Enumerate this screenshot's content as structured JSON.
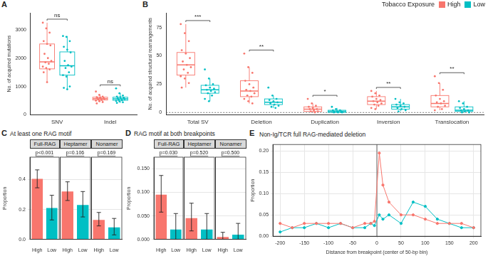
{
  "chart_data": [
    {
      "panel": "A",
      "type": "box",
      "ylabel": "No. of acquired mutations",
      "categories": [
        "SNV",
        "Indel"
      ],
      "ylim": [
        0,
        3600
      ],
      "yticks": [
        0,
        1000,
        2000,
        3000
      ],
      "grid": false,
      "significance": [
        "ns",
        "ns"
      ],
      "series": [
        {
          "name": "High",
          "color": "#F8766D",
          "boxes": [
            [
              1150,
              1620,
              1870,
              2500,
              3250
            ],
            [
              450,
              520,
              570,
              620,
              700
            ]
          ],
          "points": [
            [
              3250,
              3050,
              2900,
              2600,
              2500,
              2450,
              2150,
              2000,
              1900,
              1850,
              1800,
              1700,
              1650,
              1600,
              1500,
              1150
            ],
            [
              820,
              700,
              640,
              620,
              600,
              590,
              580,
              570,
              560,
              540,
              520,
              500,
              480,
              450,
              400
            ]
          ]
        },
        {
          "name": "Low",
          "color": "#00BFC4",
          "boxes": [
            [
              900,
              1400,
              1730,
              2220,
              2780
            ],
            [
              420,
              510,
              560,
              620,
              760
            ]
          ],
          "points": [
            [
              2780,
              2750,
              2600,
              2400,
              2300,
              2200,
              1900,
              1750,
              1700,
              1650,
              1500,
              1400,
              1350,
              1000,
              950,
              900
            ],
            [
              930,
              760,
              680,
              640,
              620,
              600,
              580,
              560,
              550,
              530,
              510,
              490,
              470,
              440,
              420
            ]
          ]
        }
      ]
    },
    {
      "panel": "B",
      "type": "box",
      "ylabel": "No. of acquired structural rearrangements",
      "categories": [
        "Total SV",
        "Deletion",
        "Duplication",
        "Inversion",
        "Translocation"
      ],
      "ylim": [
        -2,
        88
      ],
      "yticks": [
        0,
        25,
        50,
        75
      ],
      "grid": false,
      "hline": 0,
      "significance": [
        "***",
        "**",
        "*",
        "**",
        "**"
      ],
      "legend": "top-right",
      "legend_title": "Tobacco Exposure",
      "series": [
        {
          "name": "High",
          "color": "#F8766D",
          "boxes": [
            [
              22,
              33,
              42,
              53,
              78
            ],
            [
              8,
              14,
              19,
              28,
              40
            ],
            [
              0,
              1,
              3,
              5,
              8
            ],
            [
              3,
              7,
              10,
              14,
              19
            ],
            [
              2,
              5,
              8,
              15,
              26
            ]
          ],
          "points": [
            [
              78,
              70,
              63,
              55,
              52,
              48,
              45,
              42,
              40,
              38,
              35,
              32,
              30,
              26,
              22
            ],
            [
              52,
              40,
              35,
              28,
              25,
              22,
              20,
              19,
              17,
              15,
              14,
              12,
              10,
              8
            ],
            [
              12,
              8,
              6,
              5,
              4,
              3,
              3,
              2,
              1,
              1,
              0
            ],
            [
              19,
              17,
              15,
              14,
              12,
              11,
              10,
              9,
              8,
              7,
              6,
              4,
              3
            ],
            [
              32,
              26,
              20,
              15,
              12,
              10,
              9,
              8,
              6,
              5,
              3,
              2
            ]
          ]
        },
        {
          "name": "Low",
          "color": "#00BFC4",
          "boxes": [
            [
              10,
              17,
              20,
              24,
              30
            ],
            [
              4,
              7,
              9,
              12,
              15
            ],
            [
              0,
              0,
              1,
              2,
              4
            ],
            [
              1,
              3,
              5,
              7,
              12
            ],
            [
              0,
              1,
              2,
              5,
              10
            ]
          ],
          "points": [
            [
              38,
              30,
              25,
              24,
              22,
              21,
              20,
              19,
              18,
              17,
              15,
              12,
              10
            ],
            [
              22,
              15,
              12,
              11,
              10,
              9,
              8,
              7,
              6,
              5,
              4
            ],
            [
              5,
              3,
              2,
              2,
              1,
              1,
              0,
              0,
              0
            ],
            [
              12,
              9,
              8,
              7,
              6,
              5,
              4,
              3,
              2,
              1
            ],
            [
              10,
              8,
              5,
              4,
              3,
              2,
              2,
              1,
              0,
              0
            ]
          ]
        }
      ]
    },
    {
      "panel": "C",
      "type": "bar",
      "title": "At least one RAG motif",
      "ylabel": "Proportion",
      "ylim": [
        0,
        0.55
      ],
      "yticks": [
        {
          "value": 0,
          "label": "0.0"
        },
        {
          "value": 0.2,
          "label": "0.2"
        },
        {
          "value": 0.4,
          "label": "0.4"
        }
      ],
      "grid": true,
      "colors": [
        "#F8766D",
        "#00BFC4"
      ],
      "facets": [
        {
          "title": "Full-RAG",
          "p": "p<0.001",
          "categories": [
            "High",
            "Low"
          ],
          "values": [
            0.405,
            0.21
          ],
          "errors": [
            [
              0.345,
              0.465
            ],
            [
              0.13,
              0.295
            ]
          ]
        },
        {
          "title": "Heptamer",
          "p": "p=0.106",
          "categories": [
            "High",
            "Low"
          ],
          "values": [
            0.32,
            0.23
          ],
          "errors": [
            [
              0.26,
              0.385
            ],
            [
              0.15,
              0.32
            ]
          ]
        },
        {
          "title": "Nonamer",
          "p": "p=0.169",
          "categories": [
            "High",
            "Low"
          ],
          "values": [
            0.13,
            0.08
          ],
          "errors": [
            [
              0.09,
              0.18
            ],
            [
              0.03,
              0.14
            ]
          ]
        }
      ]
    },
    {
      "panel": "D",
      "type": "bar",
      "title": "RAG motif at both breakpoints",
      "ylabel": "Proportion",
      "ylim": [
        0,
        0.175
      ],
      "yticks": [
        {
          "value": 0,
          "label": "0.000"
        },
        {
          "value": 0.05,
          "label": "0.050"
        },
        {
          "value": 0.1,
          "label": "0.100"
        },
        {
          "value": 0.15,
          "label": "0.150"
        }
      ],
      "grid": true,
      "colors": [
        "#F8766D",
        "#00BFC4"
      ],
      "facets": [
        {
          "title": "Full-RAG",
          "p": "p=0.030",
          "categories": [
            "High",
            "Low"
          ],
          "values": [
            0.095,
            0.021
          ],
          "errors": [
            [
              0.058,
              0.136
            ],
            [
              0.0,
              0.055
            ]
          ]
        },
        {
          "title": "Heptamer",
          "p": "p=0.520",
          "categories": [
            "High",
            "Low"
          ],
          "values": [
            0.045,
            0.021
          ],
          "errors": [
            [
              0.018,
              0.077
            ],
            [
              0.0,
              0.055
            ]
          ]
        },
        {
          "title": "Nonamer",
          "p": "p=0.500",
          "categories": [
            "High",
            "Low"
          ],
          "values": [
            0.005,
            0.01
          ],
          "errors": [
            [
              0.0,
              0.015
            ],
            [
              0.0,
              0.034
            ]
          ]
        }
      ]
    },
    {
      "panel": "E",
      "type": "line",
      "title": "Non-Ig/TCR full RAG-mediated deletion",
      "xlabel": "Distance from breakpoint (center of 50-bp bin)",
      "ylabel": "Proportion",
      "x": [
        -200,
        -175,
        -150,
        -125,
        -100,
        -75,
        -50,
        -25,
        -12.5,
        -5,
        5,
        12.5,
        25,
        50,
        75,
        100,
        125,
        150,
        175,
        200
      ],
      "xlim": [
        -215,
        215
      ],
      "xticks": [
        -200,
        -150,
        -100,
        -50,
        0,
        50,
        100,
        150,
        200
      ],
      "ylim": [
        0,
        0.215
      ],
      "yticks": [
        {
          "value": 0,
          "label": "0.00"
        },
        {
          "value": 0.05,
          "label": "0.05"
        },
        {
          "value": 0.1,
          "label": "0.10"
        },
        {
          "value": 0.15,
          "label": "0.15"
        },
        {
          "value": 0.2,
          "label": "0.20"
        }
      ],
      "grid": true,
      "vline": 0,
      "marker": "circle",
      "series": [
        {
          "color": "#F8766D",
          "values": [
            0.03,
            0.02,
            0.03,
            0.03,
            0.03,
            0.03,
            0.02,
            0.03,
            0.03,
            0.035,
            0.195,
            0.12,
            0.08,
            0.05,
            0.05,
            0.04,
            0.03,
            0.03,
            0.03,
            0.02
          ]
        },
        {
          "color": "#00BFC4",
          "values": [
            0.01,
            0.02,
            0.02,
            0.03,
            0.02,
            0.03,
            0.02,
            0.02,
            0.03,
            0.025,
            0.05,
            0.04,
            0.05,
            0.03,
            0.08,
            0.07,
            0.04,
            0.03,
            0.02,
            0.02
          ]
        }
      ]
    }
  ]
}
